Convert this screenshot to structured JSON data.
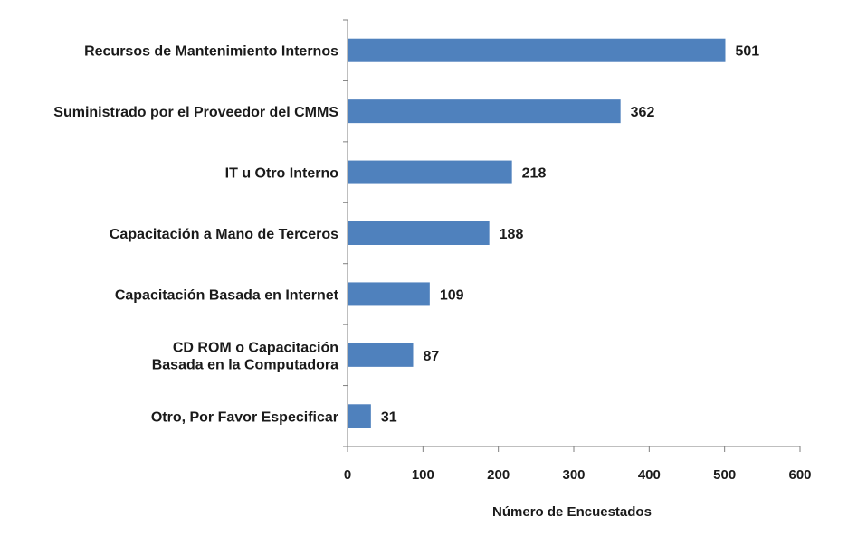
{
  "chart_data": {
    "type": "bar",
    "orientation": "horizontal",
    "title": "",
    "xlabel": "Número de Encuestados",
    "ylabel": "",
    "categories": [
      [
        "Recursos de Mantenimiento Internos"
      ],
      [
        "Suministrado por el Proveedor del CMMS"
      ],
      [
        "IT u Otro Interno"
      ],
      [
        "Capacitación a Mano de Terceros"
      ],
      [
        "Capacitación Basada en Internet"
      ],
      [
        "CD ROM o Capacitación",
        "Basada en la Computadora"
      ],
      [
        "Otro, Por Favor Especificar"
      ]
    ],
    "values": [
      501,
      362,
      218,
      188,
      109,
      87,
      31
    ],
    "xlim": [
      0,
      600
    ],
    "xticks": [
      0,
      100,
      200,
      300,
      400,
      500,
      600
    ],
    "bar_color": "#4F81BD",
    "grid": false,
    "legend": "none"
  }
}
